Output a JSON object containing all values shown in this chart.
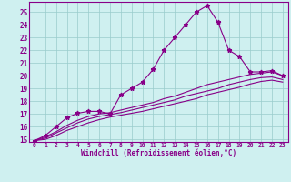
{
  "xlabel": "Windchill (Refroidissement éolien,°C)",
  "background_color": "#cff0f0",
  "line_color": "#880088",
  "grid_color": "#99cccc",
  "xlim": [
    -0.5,
    23.5
  ],
  "ylim": [
    14.8,
    25.8
  ],
  "xticks": [
    0,
    1,
    2,
    3,
    4,
    5,
    6,
    7,
    8,
    9,
    10,
    11,
    12,
    13,
    14,
    15,
    16,
    17,
    18,
    19,
    20,
    21,
    22,
    23
  ],
  "yticks": [
    15,
    16,
    17,
    18,
    19,
    20,
    21,
    22,
    23,
    24,
    25
  ],
  "series": [
    {
      "x": [
        0,
        1,
        2,
        3,
        4,
        5,
        6,
        7,
        8,
        9,
        10,
        11,
        12,
        13,
        14,
        15,
        16,
        17,
        18,
        19,
        20,
        21,
        22,
        23
      ],
      "y": [
        14.9,
        15.3,
        16.0,
        16.7,
        17.05,
        17.2,
        17.2,
        17.0,
        18.5,
        19.0,
        19.5,
        20.5,
        22.0,
        23.0,
        24.0,
        25.0,
        25.5,
        24.2,
        22.0,
        21.5,
        20.3,
        20.3,
        20.4,
        20.0
      ],
      "marker": "*",
      "markersize": 3.5,
      "linewidth": 0.8
    },
    {
      "x": [
        0,
        1,
        2,
        3,
        4,
        5,
        6,
        7,
        8,
        9,
        10,
        11,
        12,
        13,
        14,
        15,
        16,
        17,
        18,
        19,
        20,
        21,
        22,
        23
      ],
      "y": [
        14.9,
        15.2,
        15.6,
        16.1,
        16.5,
        16.8,
        17.0,
        17.1,
        17.3,
        17.5,
        17.7,
        17.9,
        18.2,
        18.4,
        18.7,
        19.0,
        19.3,
        19.5,
        19.7,
        19.9,
        20.1,
        20.2,
        20.3,
        20.0
      ],
      "marker": null,
      "markersize": 0,
      "linewidth": 0.8
    },
    {
      "x": [
        0,
        1,
        2,
        3,
        4,
        5,
        6,
        7,
        8,
        9,
        10,
        11,
        12,
        13,
        14,
        15,
        16,
        17,
        18,
        19,
        20,
        21,
        22,
        23
      ],
      "y": [
        14.9,
        15.1,
        15.5,
        15.9,
        16.3,
        16.6,
        16.8,
        16.95,
        17.1,
        17.3,
        17.5,
        17.7,
        17.9,
        18.1,
        18.4,
        18.6,
        18.8,
        19.0,
        19.3,
        19.5,
        19.7,
        19.85,
        19.9,
        19.7
      ],
      "marker": null,
      "markersize": 0,
      "linewidth": 0.8
    },
    {
      "x": [
        0,
        1,
        2,
        3,
        4,
        5,
        6,
        7,
        8,
        9,
        10,
        11,
        12,
        13,
        14,
        15,
        16,
        17,
        18,
        19,
        20,
        21,
        22,
        23
      ],
      "y": [
        14.9,
        15.0,
        15.3,
        15.7,
        16.0,
        16.3,
        16.55,
        16.75,
        16.9,
        17.05,
        17.2,
        17.4,
        17.6,
        17.8,
        18.0,
        18.2,
        18.5,
        18.7,
        18.9,
        19.1,
        19.35,
        19.55,
        19.65,
        19.5
      ],
      "marker": null,
      "markersize": 0,
      "linewidth": 0.8
    }
  ]
}
